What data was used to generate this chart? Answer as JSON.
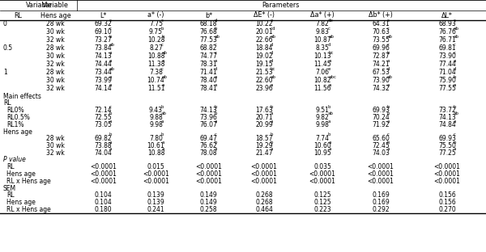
{
  "col_headers": [
    "L*",
    "a* (-)",
    "b*",
    "ΔE* (-)",
    "Δa* (+)",
    "Δb* (+)",
    "ΔL*"
  ],
  "rl_groups": [
    {
      "rl": "0",
      "rows": [
        {
          "age": "28 wk",
          "vals": [
            "69.32",
            "7.75",
            "68.18",
            "10.22",
            "7.82",
            "64.31",
            "68.93"
          ],
          "sups": [
            "c",
            "c",
            "d",
            "e",
            "de",
            "c",
            "c"
          ]
        },
        {
          "age": "30 wk",
          "vals": [
            "69.10",
            "9.75",
            "76.68",
            "20.01",
            "9.83",
            "70.63",
            "76.76"
          ],
          "sups": [
            "c",
            "b",
            "b",
            "cd",
            "c",
            "c",
            "ab"
          ]
        },
        {
          "age": "32 wk",
          "vals": [
            "73.27",
            "10.28",
            "77.53",
            "22.66",
            "10.87",
            "73.55",
            "76.71"
          ],
          "sups": [
            "b",
            "b",
            "ab",
            "ab",
            "ab",
            "ab",
            "ab"
          ]
        }
      ]
    },
    {
      "rl": "0.5",
      "rows": [
        {
          "age": "28 wk",
          "vals": [
            "73.84",
            "8.27",
            "68.82",
            "18.84",
            "8.35",
            "69.96",
            "69.81"
          ],
          "sups": [
            "ab",
            "c",
            "c",
            "d",
            "d",
            "c",
            "c"
          ]
        },
        {
          "age": "30 wk",
          "vals": [
            "74.13",
            "10.88",
            "74.77",
            "19.02",
            "10.13",
            "72.87",
            "73.90"
          ],
          "sups": [
            "a",
            "ab",
            "c",
            "d",
            "bc",
            "b",
            "c"
          ]
        },
        {
          "age": "32 wk",
          "vals": [
            "74.44",
            "11.38",
            "78.31",
            "19.15",
            "11.45",
            "74.21",
            "77.44"
          ],
          "sups": [
            "a",
            "a",
            "a",
            "d",
            "a",
            "a",
            "a"
          ]
        }
      ]
    },
    {
      "rl": "1",
      "rows": [
        {
          "age": "28 wk",
          "vals": [
            "73.44",
            "7.38",
            "71.41",
            "21.53",
            "7.06",
            "67.53",
            "71.04"
          ],
          "sups": [
            "ab",
            "c",
            "d",
            "bc",
            "e",
            "d",
            "d"
          ]
        },
        {
          "age": "30 wk",
          "vals": [
            "73.99",
            "10.74",
            "78.40",
            "22.60",
            "10.82",
            "73.90",
            "75.90"
          ],
          "sups": [
            "a",
            "ab",
            "a",
            "ab",
            "abc",
            "ab",
            "b"
          ]
        },
        {
          "age": "32 wk",
          "vals": [
            "74.14",
            "11.51",
            "78.41",
            "23.96",
            "11.56",
            "74.32",
            "77.55"
          ],
          "sups": [
            "a",
            "a",
            "a",
            "a",
            "a",
            "a",
            "a"
          ]
        }
      ]
    }
  ],
  "rl_main": [
    {
      "label": "RL0%",
      "vals": [
        "72.14",
        "9.43",
        "74.13",
        "17.63",
        "9.51",
        "69.93",
        "73.72"
      ],
      "sups": [
        "c",
        "b",
        "b",
        "b",
        "b",
        "b",
        "b"
      ]
    },
    {
      "label": "RL0.5%",
      "vals": [
        "72.55",
        "9.88",
        "73.96",
        "20.71",
        "9.82",
        "70.24",
        "74.13"
      ],
      "sups": [
        "b",
        "ab",
        "b",
        "a",
        "ab",
        "b",
        "ab"
      ]
    },
    {
      "label": "RL1%",
      "vals": [
        "73.05",
        "9.98",
        "76.07",
        "20.99",
        "9.98",
        "71.92",
        "74.84"
      ],
      "sups": [
        "a",
        "a",
        "a",
        "a",
        "a",
        "a",
        "a"
      ]
    }
  ],
  "hens_main": [
    {
      "label": "28 wk",
      "vals": [
        "69.82",
        "7.80",
        "69.47",
        "18.57",
        "7.74",
        "65.60",
        "69.93"
      ],
      "sups": [
        "b",
        "b",
        "c",
        "b",
        "b",
        "c",
        "c"
      ]
    },
    {
      "label": "30 wk",
      "vals": [
        "73.88",
        "10.61",
        "76.62",
        "19.29",
        "10.60",
        "72.45",
        "75.50"
      ],
      "sups": [
        "a",
        "a",
        "b",
        "b",
        "a",
        "b",
        "b"
      ]
    },
    {
      "label": "32 wk",
      "vals": [
        "74.04",
        "10.88",
        "78.08",
        "21.47",
        "10.95",
        "74.03",
        "77.25"
      ],
      "sups": [
        "a",
        "a",
        "a",
        "a",
        "a",
        "a",
        "a"
      ]
    }
  ],
  "pval_rows": [
    {
      "label": "RL",
      "vals": [
        "<0.0001",
        "0.015",
        "<0.0001",
        "<0.0001",
        "0.035",
        "<0.0001",
        "<0.0001"
      ]
    },
    {
      "label": "Hens age",
      "vals": [
        "<0.0001",
        "<0.0001",
        "<0.0001",
        "<0.0001",
        "<0.0001",
        "<0.0001",
        "<0.0001"
      ]
    },
    {
      "label": "RL x Hens age",
      "vals": [
        "<0.0001",
        "<0.0001",
        "<0.0001",
        "<0.0001",
        "<0.0001",
        "<0.0001",
        "<0.0001"
      ]
    }
  ],
  "sem_rows": [
    {
      "label": "RL",
      "vals": [
        "0.104",
        "0.139",
        "0.149",
        "0.268",
        "0.125",
        "0.169",
        "0.156"
      ]
    },
    {
      "label": "Hens age",
      "vals": [
        "0.104",
        "0.139",
        "0.149",
        "0.268",
        "0.125",
        "0.169",
        "0.156"
      ]
    },
    {
      "label": "RL x Hens age",
      "vals": [
        "0.180",
        "0.241",
        "0.258",
        "0.464",
        "0.223",
        "0.292",
        "0.270"
      ]
    }
  ]
}
